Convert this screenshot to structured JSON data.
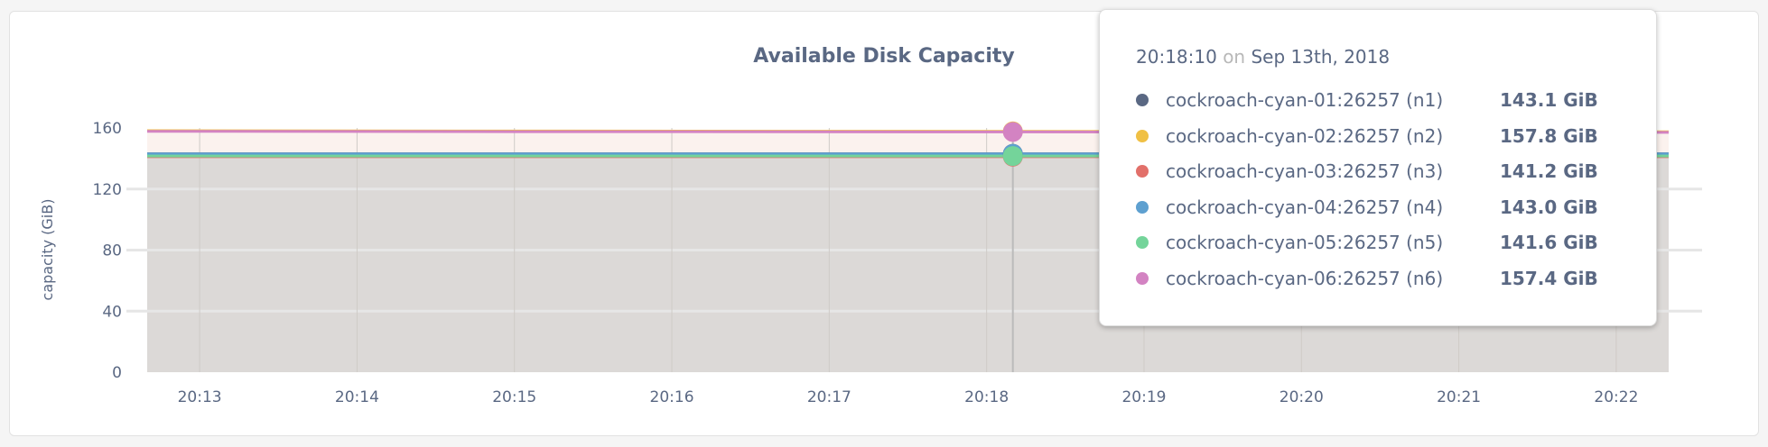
{
  "chart_data": {
    "type": "area",
    "title": "Available Disk Capacity",
    "ylabel": "capacity (GiB)",
    "xlabel": "",
    "ylim": [
      0,
      160
    ],
    "yticks": [
      "0",
      "40",
      "80",
      "120",
      "160"
    ],
    "xticks": [
      "20:13",
      "20:14",
      "20:15",
      "20:16",
      "20:17",
      "20:18",
      "20:19",
      "20:20",
      "20:21",
      "20:22"
    ],
    "xrange": [
      "20:12:40",
      "20:22:20"
    ],
    "grid": true,
    "x": [
      "20:12:40",
      "20:15:00",
      "20:18:10",
      "20:22:20"
    ],
    "series": [
      {
        "name": "cockroach-cyan-01:26257 (n1)",
        "color": "#5a6883",
        "values": [
          143.1,
          143.1,
          143.1,
          143.1
        ]
      },
      {
        "name": "cockroach-cyan-02:26257 (n2)",
        "color": "#f0c044",
        "values": [
          158.2,
          158.0,
          157.8,
          157.5
        ]
      },
      {
        "name": "cockroach-cyan-03:26257 (n3)",
        "color": "#e2706a",
        "values": [
          141.2,
          141.2,
          141.2,
          141.2
        ]
      },
      {
        "name": "cockroach-cyan-04:26257 (n4)",
        "color": "#5ea0d0",
        "values": [
          143.0,
          143.0,
          143.0,
          143.0
        ]
      },
      {
        "name": "cockroach-cyan-05:26257 (n5)",
        "color": "#74d49a",
        "values": [
          141.6,
          141.6,
          141.6,
          141.6
        ]
      },
      {
        "name": "cockroach-cyan-06:26257 (n6)",
        "color": "#d383c2",
        "values": [
          157.8,
          157.6,
          157.4,
          157.1
        ]
      }
    ]
  },
  "tooltip": {
    "time": "20:18:10",
    "on": "on",
    "date": "Sep 13th, 2018",
    "rows": [
      {
        "name": "cockroach-cyan-01:26257 (n1)",
        "value": "143.1 GiB",
        "color": "#5a6883"
      },
      {
        "name": "cockroach-cyan-02:26257 (n2)",
        "value": "157.8 GiB",
        "color": "#f0c044"
      },
      {
        "name": "cockroach-cyan-03:26257 (n3)",
        "value": "141.2 GiB",
        "color": "#e2706a"
      },
      {
        "name": "cockroach-cyan-04:26257 (n4)",
        "value": "143.0 GiB",
        "color": "#5ea0d0"
      },
      {
        "name": "cockroach-cyan-05:26257 (n5)",
        "value": "141.6 GiB",
        "color": "#74d49a"
      },
      {
        "name": "cockroach-cyan-06:26257 (n6)",
        "value": "157.4 GiB",
        "color": "#d383c2"
      }
    ]
  }
}
